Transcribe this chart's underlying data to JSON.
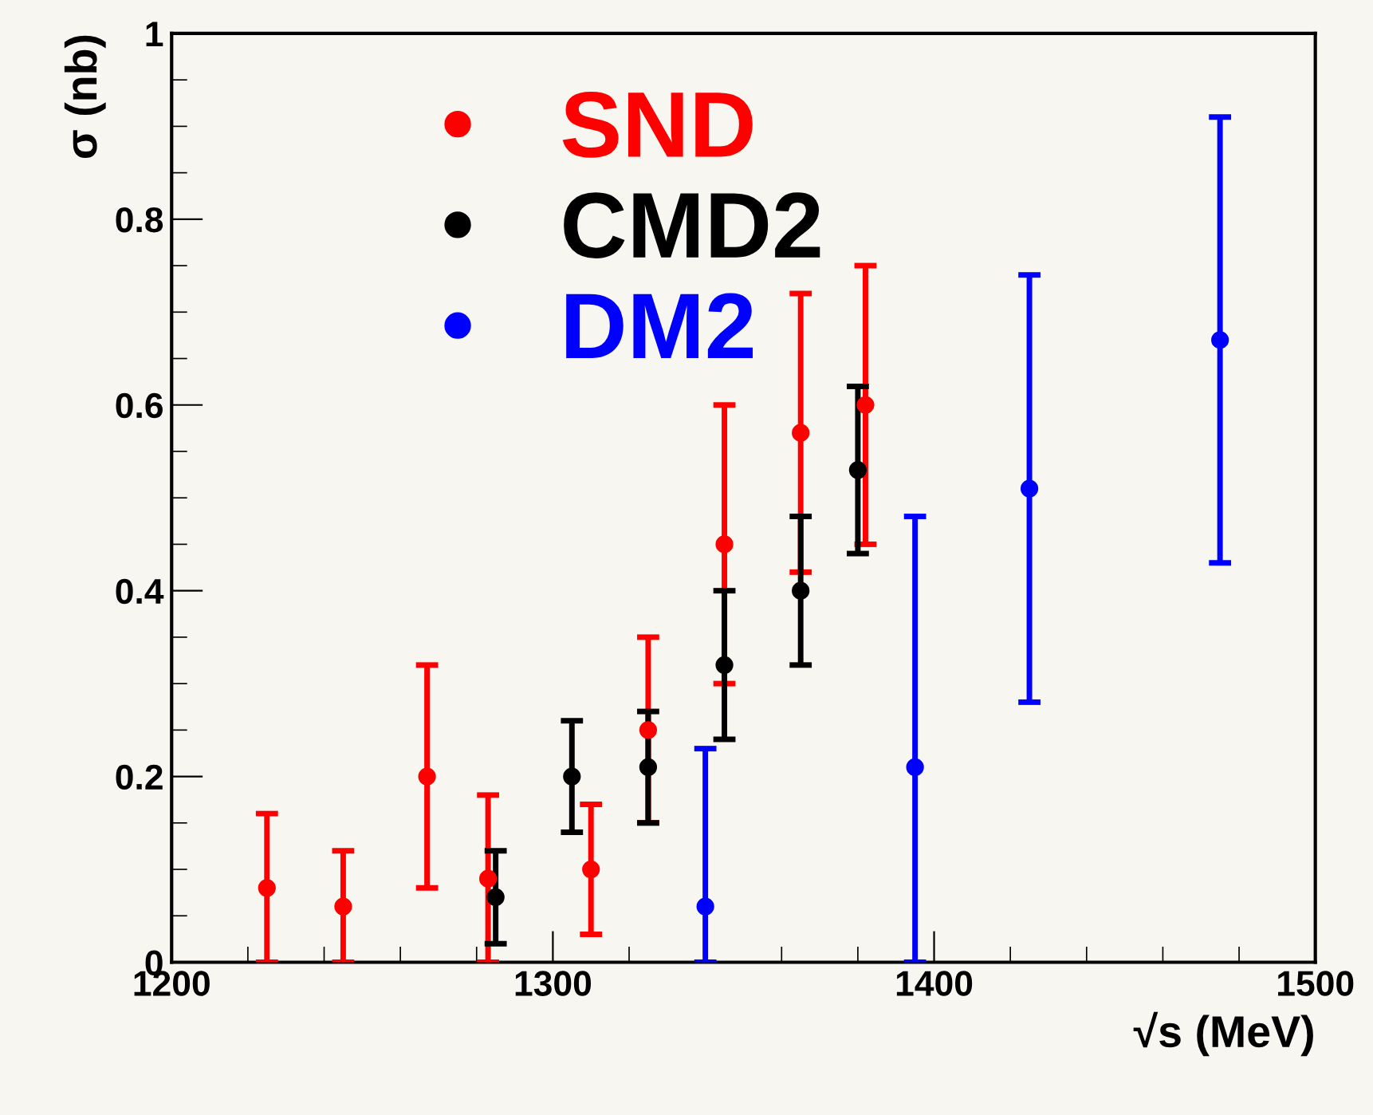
{
  "chart_data": {
    "type": "scatter",
    "xlabel": "√s (MeV)",
    "ylabel": "σ (nb)",
    "xlim": [
      1200,
      1500
    ],
    "ylim": [
      0,
      1
    ],
    "xticks": [
      1200,
      1300,
      1400,
      1500
    ],
    "yticks": [
      0,
      0.2,
      0.4,
      0.6,
      0.8,
      {
        "value": 1,
        "label": "1"
      }
    ],
    "grid": false,
    "legend": "top left",
    "marker": "circle",
    "series": [
      {
        "name": "SND",
        "color": "#ff0000",
        "x": [
          1225,
          1245,
          1267,
          1283,
          1310,
          1325,
          1345,
          1365,
          1382
        ],
        "values": [
          0.08,
          0.06,
          0.2,
          0.09,
          0.1,
          0.25,
          0.45,
          0.57,
          0.6
        ],
        "errors": [
          [
            0,
            0.16
          ],
          [
            0,
            0.12
          ],
          [
            0.08,
            0.32
          ],
          [
            0,
            0.18
          ],
          [
            0.03,
            0.17
          ],
          [
            0.15,
            0.35
          ],
          [
            0.3,
            0.6
          ],
          [
            0.42,
            0.72
          ],
          [
            0.45,
            0.75
          ]
        ]
      },
      {
        "name": "CMD2",
        "color": "#000000",
        "x": [
          1285,
          1305,
          1325,
          1345,
          1365,
          1380
        ],
        "values": [
          0.07,
          0.2,
          0.21,
          0.32,
          0.4,
          0.53
        ],
        "errors": [
          [
            0.02,
            0.12
          ],
          [
            0.14,
            0.26
          ],
          [
            0.15,
            0.27
          ],
          [
            0.24,
            0.4
          ],
          [
            0.32,
            0.48
          ],
          [
            0.44,
            0.62
          ]
        ]
      },
      {
        "name": "DM2",
        "color": "#0000ff",
        "x": [
          1340,
          1395,
          1425,
          1475
        ],
        "values": [
          0.06,
          0.21,
          0.51,
          0.67
        ],
        "errors": [
          [
            0,
            0.23
          ],
          [
            0,
            0.48
          ],
          [
            0.28,
            0.74
          ],
          [
            0.43,
            0.91
          ]
        ]
      }
    ]
  }
}
